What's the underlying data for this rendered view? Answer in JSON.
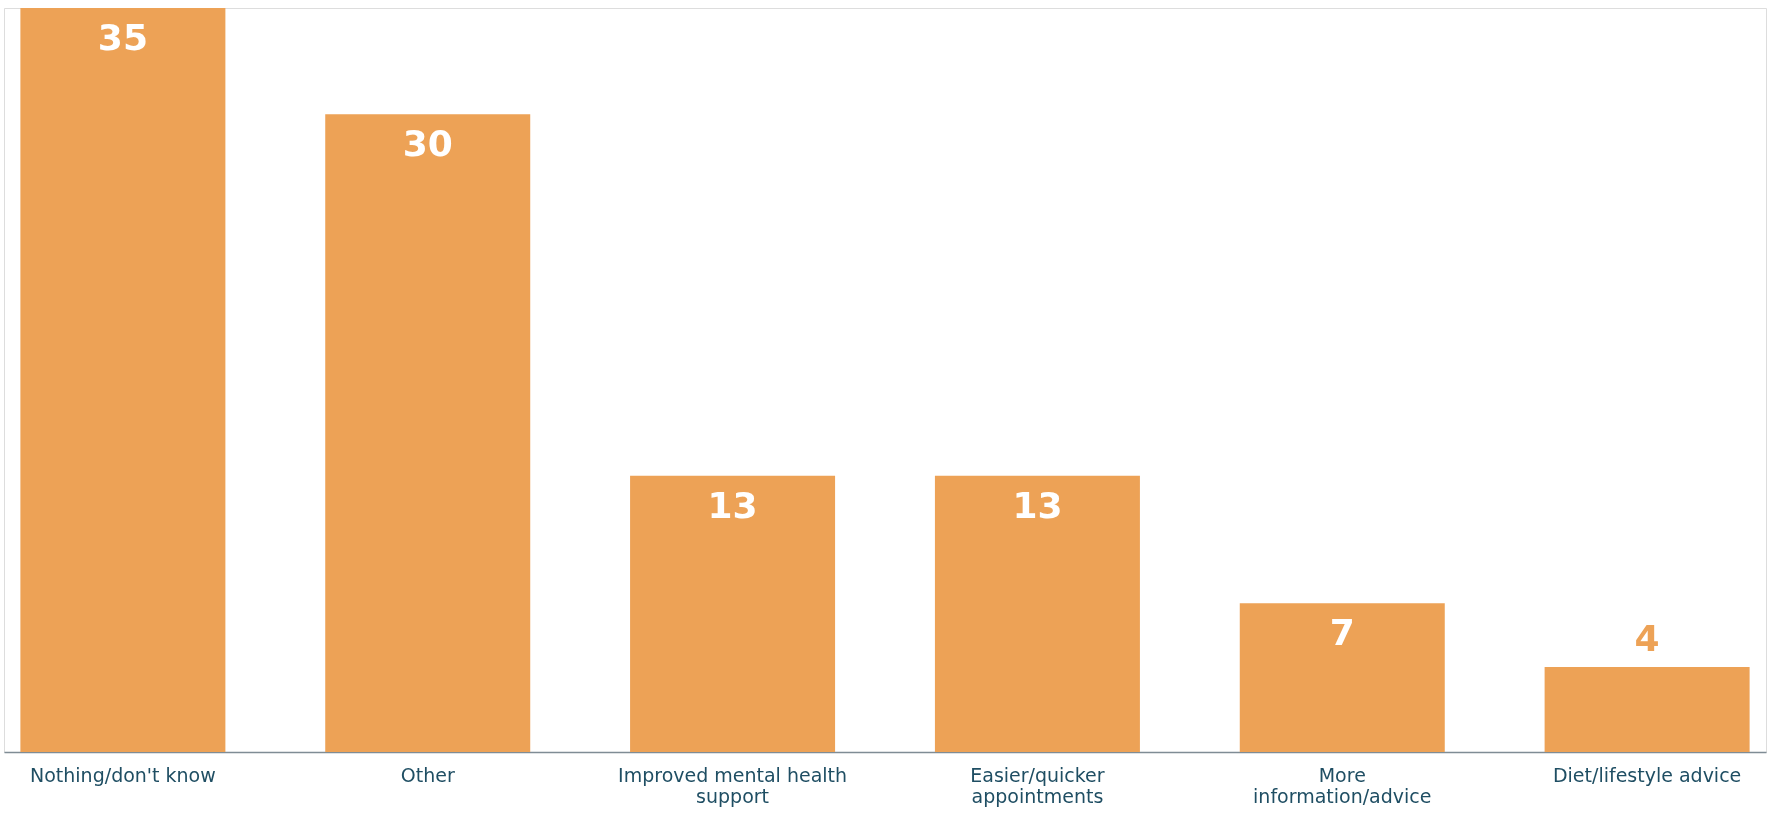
{
  "chart_data": {
    "type": "bar",
    "categories": [
      "Nothing/don't know",
      "Other",
      "Improved mental health support",
      "Easier/quicker appointments",
      "More information/advice",
      "Diet/lifestyle advice"
    ],
    "values": [
      35,
      30,
      13,
      13,
      7,
      4
    ],
    "color": "#eda256",
    "data_labels": true,
    "grid": false
  }
}
